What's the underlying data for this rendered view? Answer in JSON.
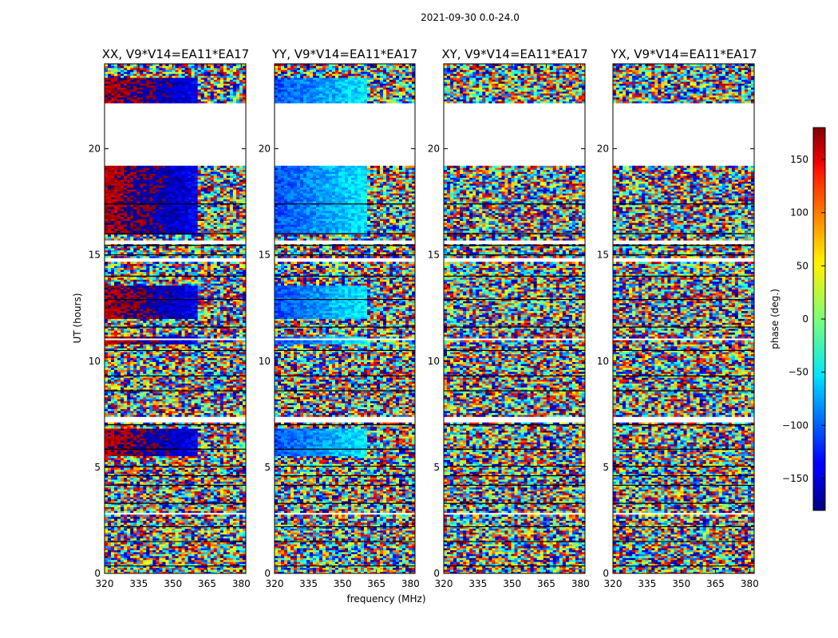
{
  "chart_data": {
    "type": "heatmap",
    "suptitle": "2021-09-30 0.0-24.0",
    "xlabel": "frequency (MHz)",
    "ylabel": "UT (hours)",
    "xlim": [
      320,
      382
    ],
    "ylim": [
      0,
      24
    ],
    "xticks": [
      "320",
      "335",
      "350",
      "365",
      "380"
    ],
    "xtick_values": [
      320,
      335,
      350,
      365,
      380
    ],
    "yticks": [
      "0",
      "5",
      "10",
      "15",
      "20"
    ],
    "ytick_values": [
      0,
      5,
      10,
      15,
      20
    ],
    "colorbar": {
      "label": "phase (deg.)",
      "range": [
        -180,
        180
      ],
      "ticks": [
        "150",
        "100",
        "50",
        "0",
        "−50",
        "−100",
        "−150"
      ],
      "tick_values": [
        150,
        100,
        50,
        0,
        -50,
        -100,
        -150
      ],
      "colormap": "jet"
    },
    "panels": [
      {
        "title": "XX, V9*V14=EA11*EA17",
        "coherent_phase_deg": 160
      },
      {
        "title": "YY, V9*V14=EA11*EA17",
        "coherent_phase_deg": -110
      },
      {
        "title": "XY, V9*V14=EA11*EA17",
        "coherent_phase_deg": null
      },
      {
        "title": "YX, V9*V14=EA11*EA17",
        "coherent_phase_deg": null
      }
    ],
    "flagged_ut_ranges": [
      [
        19.2,
        22.2
      ],
      [
        15.55,
        15.7
      ],
      [
        14.65,
        14.9
      ],
      [
        11.0,
        11.05
      ],
      [
        7.15,
        7.35
      ],
      [
        2.8,
        2.85
      ],
      [
        0.05,
        0.1
      ]
    ],
    "coherent_ut_ranges": [
      [
        16.0,
        19.2
      ],
      [
        22.2,
        23.4
      ],
      [
        12.0,
        13.6
      ],
      [
        10.8,
        11.2
      ],
      [
        5.5,
        6.8
      ]
    ],
    "coherent_freq_limit_mhz": 361
  }
}
